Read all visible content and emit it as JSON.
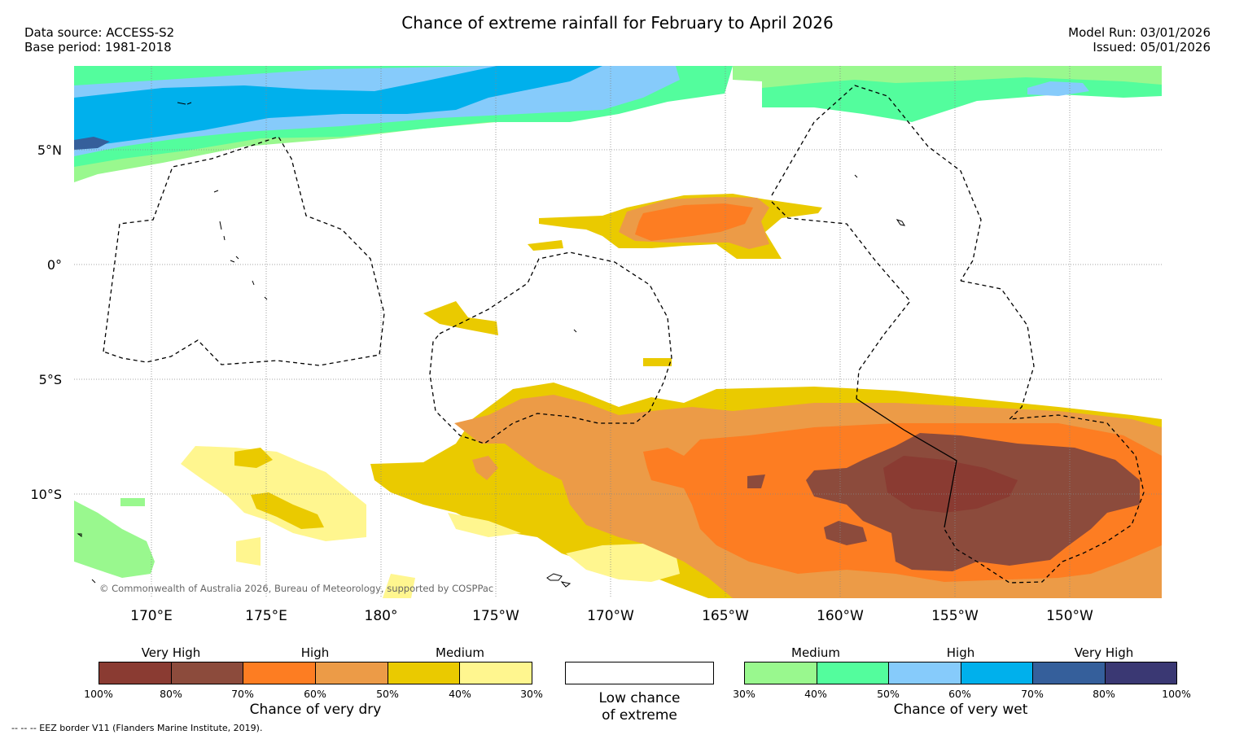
{
  "header": {
    "title": "Chance of extreme rainfall for February to April 2026",
    "data_source": "Data source: ACCESS-S2",
    "base_period": "Base period: 1981-2018",
    "model_run": "Model Run: 03/01/2026",
    "issued": "Issued: 05/01/2026"
  },
  "map": {
    "lat_labels": [
      "5°N",
      "0°",
      "5°S",
      "10°S"
    ],
    "lon_labels": [
      "170°E",
      "175°E",
      "180°",
      "175°W",
      "170°W",
      "165°W",
      "160°W",
      "155°W",
      "150°W"
    ],
    "copyright": "© Commonwealth of Australia 2026, Bureau of Meteorology, supported by COSPPac"
  },
  "legend_dry": {
    "categories": [
      "Very High",
      "High",
      "Medium"
    ],
    "ticks": [
      "100%",
      "80%",
      "70%",
      "60%",
      "50%",
      "40%",
      "30%"
    ],
    "colors": [
      "#8a3b32",
      "#8c4b3c",
      "#fd7d22",
      "#ec9b47",
      "#eaca00",
      "#fff68f"
    ],
    "caption": "Chance of very dry"
  },
  "legend_neutral": {
    "caption_line1": "Low chance",
    "caption_line2": "of extreme"
  },
  "legend_wet": {
    "categories": [
      "Medium",
      "High",
      "Very High"
    ],
    "ticks": [
      "30%",
      "40%",
      "50%",
      "60%",
      "70%",
      "80%",
      "100%"
    ],
    "colors": [
      "#99f88e",
      "#53fd9d",
      "#86cbfb",
      "#00b0ec",
      "#355f9b",
      "#3a3873"
    ],
    "caption": "Chance of very wet"
  },
  "footer": {
    "eez_note": "--  --  -- EEZ border V11 (Flanders Marine Institute, 2019)."
  }
}
